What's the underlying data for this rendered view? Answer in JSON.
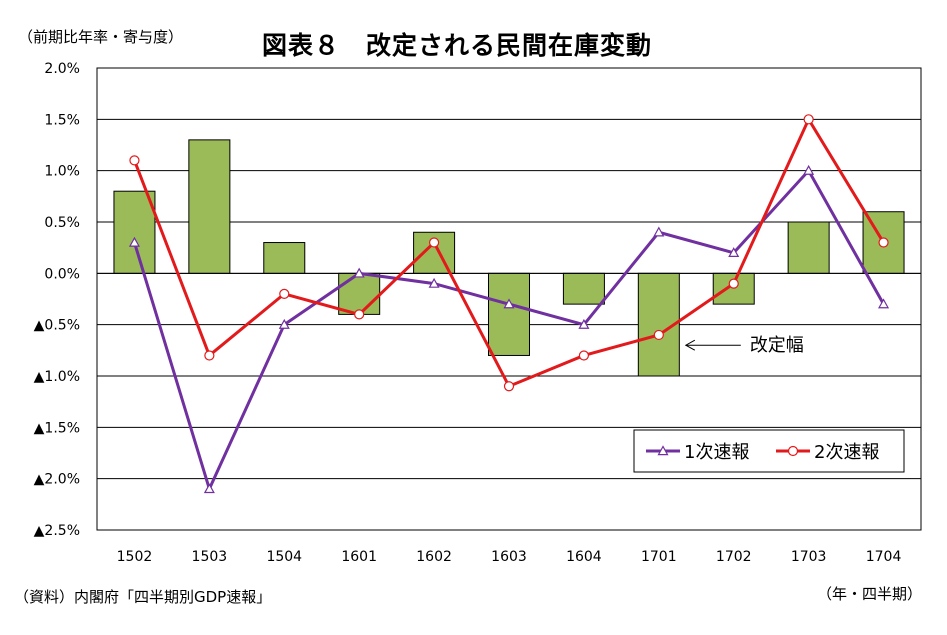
{
  "unit_label": "（前期比年率・寄与度）",
  "source_note": "（資料）内閣府「四半期別GDP速報」",
  "period_label": "（年・四半期）",
  "chart_data": {
    "type": "bar+line",
    "title": "図表８　改定される民間在庫変動",
    "categories": [
      "1502",
      "1503",
      "1504",
      "1601",
      "1602",
      "1603",
      "1604",
      "1701",
      "1702",
      "1703",
      "1704"
    ],
    "ylim": [
      -2.5,
      2.0
    ],
    "yticks": [
      2.0,
      1.5,
      1.0,
      0.5,
      0.0,
      -0.5,
      -1.0,
      -1.5,
      -2.0,
      -2.5
    ],
    "ytick_labels": [
      "2.0%",
      "1.5%",
      "1.0%",
      "0.5%",
      "0.0%",
      "▲0.5%",
      "▲1.0%",
      "▲1.5%",
      "▲2.0%",
      "▲2.5%"
    ],
    "bars": {
      "values": [
        0.8,
        1.3,
        0.3,
        -0.4,
        0.4,
        -0.8,
        -0.3,
        -1.0,
        -0.3,
        0.5,
        0.6
      ],
      "color": "#9bbb59"
    },
    "series": [
      {
        "name": "1次速報",
        "color": "#7030a0",
        "marker": "triangle",
        "values": [
          0.3,
          -2.1,
          -0.5,
          0.0,
          -0.1,
          -0.3,
          -0.5,
          0.4,
          0.2,
          1.0,
          -0.3
        ]
      },
      {
        "name": "2次速報",
        "color": "#e31a1c",
        "marker": "circle",
        "values": [
          1.1,
          -0.8,
          -0.2,
          -0.4,
          0.3,
          -1.1,
          -0.8,
          -0.6,
          -0.1,
          1.5,
          0.3
        ]
      }
    ],
    "annotation": {
      "text": "改定幅",
      "category": "1701",
      "value": -0.7
    },
    "legend_position": "lower-right",
    "grid": true
  }
}
